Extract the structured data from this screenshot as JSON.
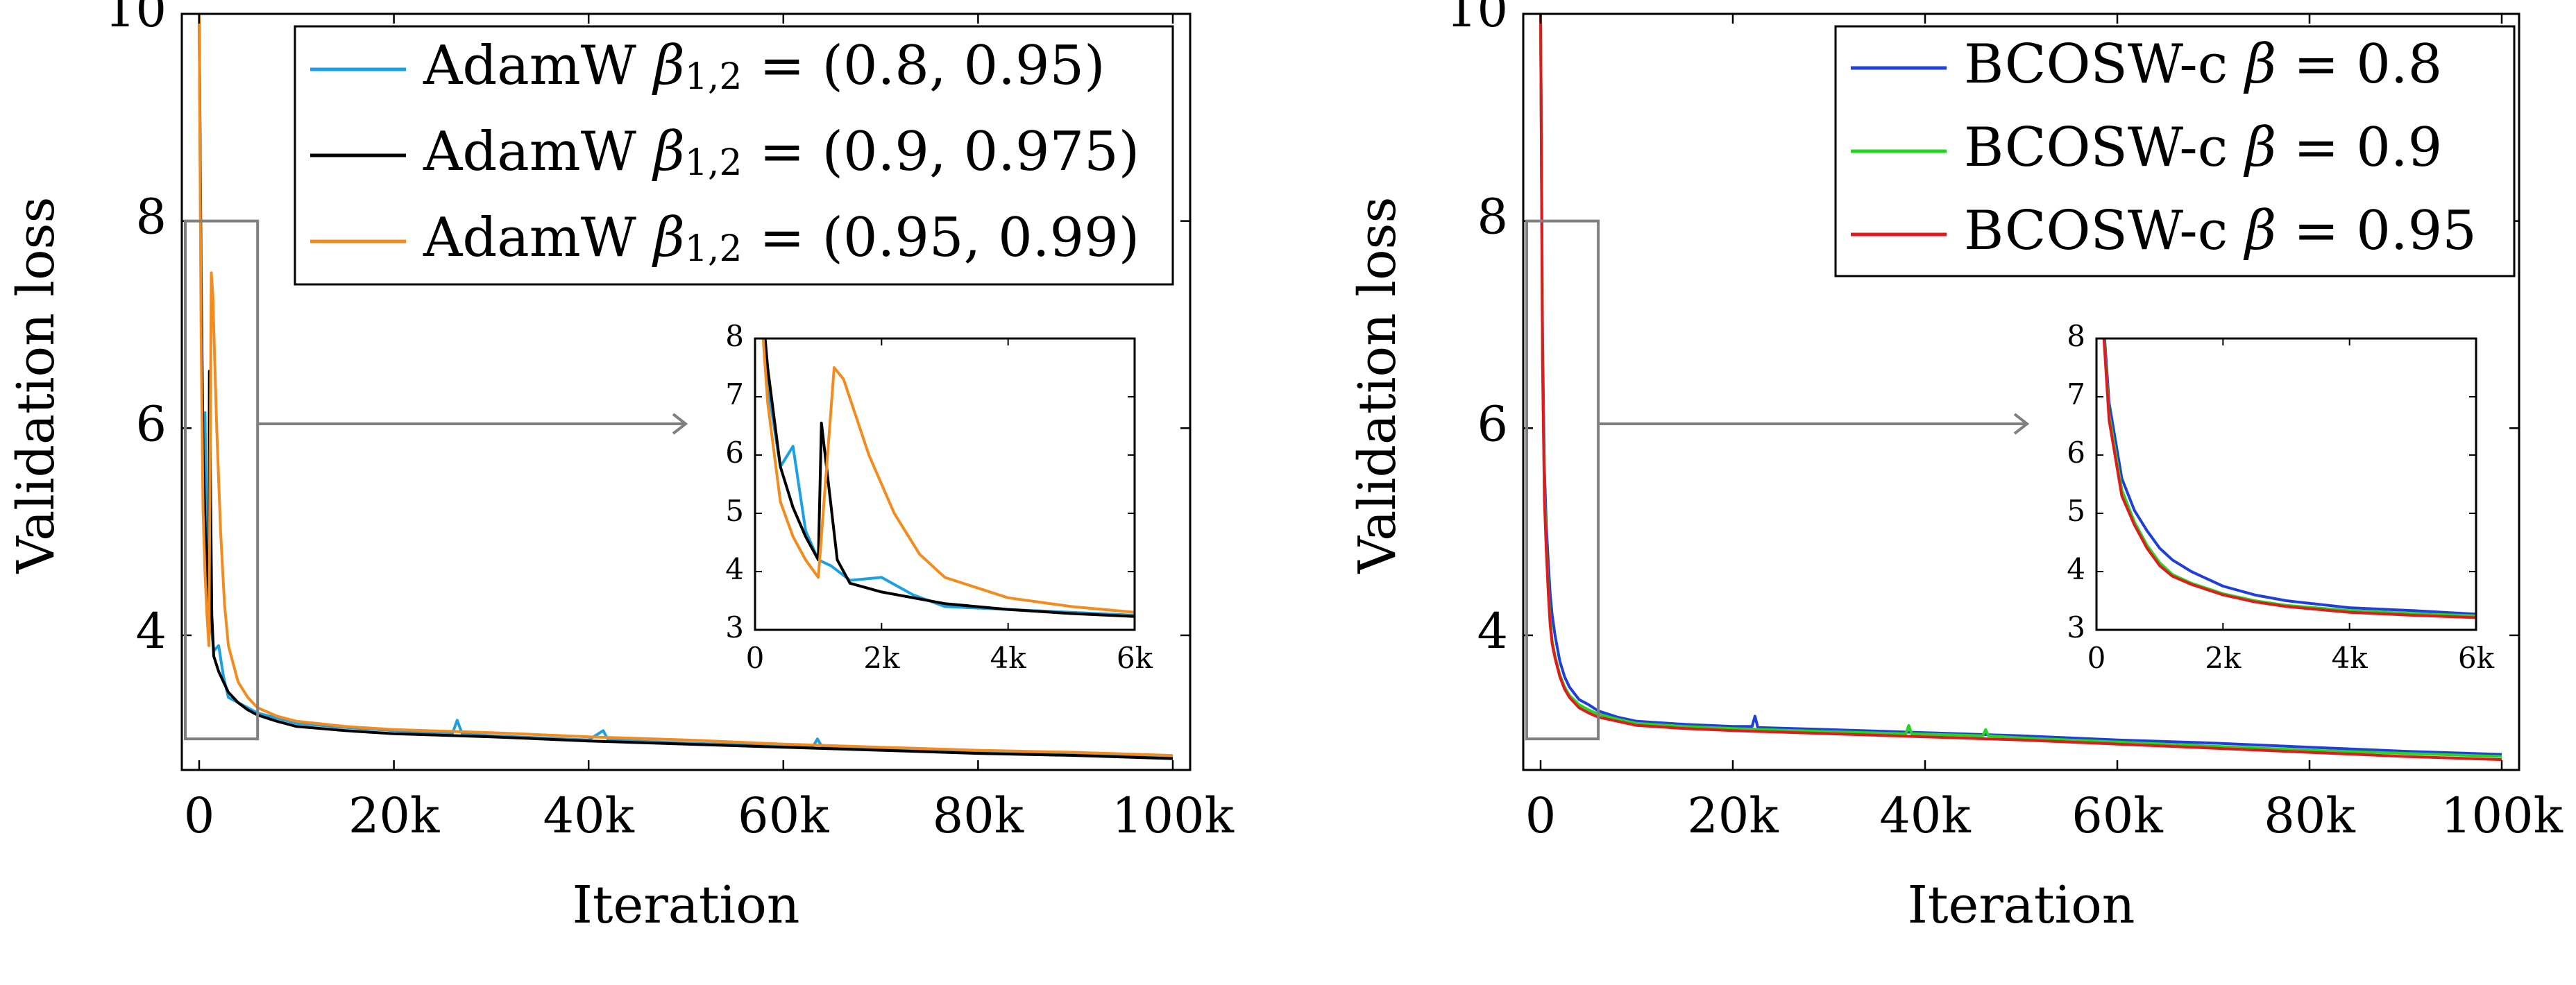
{
  "chart_data": [
    {
      "type": "line",
      "xlabel": "Iteration",
      "ylabel": "Validation loss",
      "xlim": [
        0,
        100000
      ],
      "ylim": [
        2.7,
        10
      ],
      "x_ticks": [
        {
          "value": 0,
          "label": "0"
        },
        {
          "value": 20000,
          "label": "20k"
        },
        {
          "value": 40000,
          "label": "40k"
        },
        {
          "value": 60000,
          "label": "60k"
        },
        {
          "value": 80000,
          "label": "80k"
        },
        {
          "value": 100000,
          "label": "100k"
        }
      ],
      "y_ticks": [
        {
          "value": 4,
          "label": "4"
        },
        {
          "value": 6,
          "label": "6"
        },
        {
          "value": 8,
          "label": "8"
        },
        {
          "value": 10,
          "label": "10"
        }
      ],
      "grid": false,
      "legend_position": "top-right",
      "legend": [
        {
          "label": "AdamW β1,2 = (0.8, 0.95)",
          "base": "AdamW ",
          "sym": "β",
          "sub": "1,2",
          "rest": " = (0.8, 0.95)",
          "color": "#1BA1E2"
        },
        {
          "label": "AdamW β1,2 = (0.9, 0.975)",
          "base": "AdamW ",
          "sym": "β",
          "sub": "1,2",
          "rest": " = (0.9, 0.975)",
          "color": "#000000"
        },
        {
          "label": "AdamW β1,2 = (0.95, 0.99)",
          "base": "AdamW ",
          "sym": "β",
          "sub": "1,2",
          "rest": " = (0.95, 0.99)",
          "color": "#F28C1E"
        }
      ],
      "series": [
        {
          "name": "AdamW β1,2 = (0.8, 0.95)",
          "color": "#1BA1E2",
          "x": [
            0,
            200,
            400,
            600,
            800,
            1000,
            1200,
            1500,
            2000,
            2500,
            3000,
            4000,
            5000,
            6000,
            8000,
            10000,
            15000,
            20000,
            26000,
            26500,
            27000,
            30000,
            40000,
            41500,
            42000,
            50000,
            60000,
            63000,
            63500,
            64000,
            70000,
            80000,
            90000,
            100000
          ],
          "y": [
            10,
            7.2,
            5.8,
            6.15,
            4.7,
            4.2,
            4.1,
            3.85,
            3.9,
            3.6,
            3.4,
            3.35,
            3.3,
            3.25,
            3.2,
            3.15,
            3.11,
            3.08,
            3.05,
            3.18,
            3.05,
            3.03,
            2.99,
            3.08,
            2.99,
            2.96,
            2.93,
            2.92,
            3.0,
            2.92,
            2.9,
            2.87,
            2.85,
            2.82
          ]
        },
        {
          "name": "AdamW β1,2 = (0.9, 0.975)",
          "color": "#000000",
          "x": [
            0,
            200,
            400,
            600,
            800,
            1000,
            1050,
            1300,
            1500,
            2000,
            3000,
            4000,
            5000,
            6000,
            8000,
            10000,
            15000,
            20000,
            30000,
            40000,
            50000,
            60000,
            70000,
            80000,
            90000,
            100000
          ],
          "y": [
            10,
            7.5,
            5.8,
            5.1,
            4.6,
            4.2,
            6.55,
            4.2,
            3.8,
            3.65,
            3.45,
            3.35,
            3.28,
            3.23,
            3.17,
            3.12,
            3.08,
            3.05,
            3.02,
            2.98,
            2.95,
            2.92,
            2.89,
            2.86,
            2.84,
            2.81
          ]
        },
        {
          "name": "AdamW β1,2 = (0.95, 0.99)",
          "color": "#F28C1E",
          "x": [
            0,
            200,
            400,
            600,
            800,
            1000,
            1250,
            1400,
            1800,
            2200,
            2600,
            3000,
            4000,
            5000,
            6000,
            8000,
            10000,
            15000,
            20000,
            30000,
            40000,
            50000,
            60000,
            70000,
            80000,
            90000,
            100000
          ],
          "y": [
            10,
            6.9,
            5.2,
            4.6,
            4.2,
            3.9,
            7.5,
            7.3,
            6.0,
            5.0,
            4.3,
            3.9,
            3.55,
            3.4,
            3.3,
            3.22,
            3.17,
            3.12,
            3.09,
            3.06,
            3.02,
            2.99,
            2.95,
            2.92,
            2.89,
            2.87,
            2.84
          ]
        }
      ],
      "zoom_box": {
        "xlim": [
          0,
          6000
        ],
        "ylim": [
          3,
          8
        ]
      },
      "inset": {
        "xlim": [
          0,
          6000
        ],
        "ylim": [
          3,
          8
        ],
        "x_ticks": [
          {
            "value": 0,
            "label": "0"
          },
          {
            "value": 2000,
            "label": "2k"
          },
          {
            "value": 4000,
            "label": "4k"
          },
          {
            "value": 6000,
            "label": "6k"
          }
        ],
        "y_ticks": [
          {
            "value": 3,
            "label": "3"
          },
          {
            "value": 4,
            "label": "4"
          },
          {
            "value": 5,
            "label": "5"
          },
          {
            "value": 6,
            "label": "6"
          },
          {
            "value": 7,
            "label": "7"
          },
          {
            "value": 8,
            "label": "8"
          }
        ]
      }
    },
    {
      "type": "line",
      "xlabel": "Iteration",
      "ylabel": "Validation loss",
      "xlim": [
        0,
        100000
      ],
      "ylim": [
        2.7,
        10
      ],
      "x_ticks": [
        {
          "value": 0,
          "label": "0"
        },
        {
          "value": 20000,
          "label": "20k"
        },
        {
          "value": 40000,
          "label": "40k"
        },
        {
          "value": 60000,
          "label": "60k"
        },
        {
          "value": 80000,
          "label": "80k"
        },
        {
          "value": 100000,
          "label": "100k"
        }
      ],
      "y_ticks": [
        {
          "value": 4,
          "label": "4"
        },
        {
          "value": 6,
          "label": "6"
        },
        {
          "value": 8,
          "label": "8"
        },
        {
          "value": 10,
          "label": "10"
        }
      ],
      "grid": false,
      "legend_position": "top-right",
      "legend": [
        {
          "label": "BCOSW-c β = 0.8",
          "base": "BCOSW-c ",
          "sym": "β",
          "sub": "",
          "rest": " = 0.8",
          "color": "#1F3FD8"
        },
        {
          "label": "BCOSW-c β = 0.9",
          "base": "BCOSW-c ",
          "sym": "β",
          "sub": "",
          "rest": " = 0.9",
          "color": "#22D622"
        },
        {
          "label": "BCOSW-c β = 0.95",
          "base": "BCOSW-c ",
          "sym": "β",
          "sub": "",
          "rest": " = 0.95",
          "color": "#E01B1B"
        }
      ],
      "series": [
        {
          "name": "BCOSW-c β = 0.8",
          "color": "#1F3FD8",
          "x": [
            0,
            200,
            400,
            600,
            800,
            1000,
            1200,
            1500,
            2000,
            2500,
            3000,
            4000,
            5000,
            6000,
            8000,
            10000,
            15000,
            20000,
            22000,
            22300,
            22600,
            30000,
            40000,
            50000,
            60000,
            70000,
            80000,
            90000,
            100000
          ],
          "y": [
            10,
            6.9,
            5.6,
            5.05,
            4.7,
            4.4,
            4.2,
            4.0,
            3.75,
            3.6,
            3.5,
            3.38,
            3.33,
            3.27,
            3.21,
            3.17,
            3.14,
            3.12,
            3.12,
            3.22,
            3.11,
            3.09,
            3.06,
            3.03,
            2.99,
            2.96,
            2.92,
            2.88,
            2.85
          ]
        },
        {
          "name": "BCOSW-c β = 0.9",
          "color": "#22D622",
          "x": [
            0,
            200,
            400,
            600,
            800,
            1000,
            1200,
            1500,
            2000,
            2500,
            3000,
            4000,
            5000,
            6000,
            8000,
            10000,
            15000,
            20000,
            30000,
            38000,
            38300,
            38600,
            46000,
            46300,
            46600,
            50000,
            60000,
            70000,
            80000,
            90000,
            100000
          ],
          "y": [
            10,
            6.7,
            5.4,
            4.85,
            4.45,
            4.15,
            3.95,
            3.8,
            3.62,
            3.5,
            3.42,
            3.33,
            3.28,
            3.24,
            3.19,
            3.15,
            3.12,
            3.1,
            3.07,
            3.05,
            3.13,
            3.05,
            3.03,
            3.09,
            3.03,
            3.01,
            2.97,
            2.93,
            2.89,
            2.86,
            2.83
          ]
        },
        {
          "name": "BCOSW-c β = 0.95",
          "color": "#E01B1B",
          "x": [
            0,
            200,
            400,
            600,
            800,
            1000,
            1200,
            1500,
            2000,
            2500,
            3000,
            4000,
            5000,
            6000,
            8000,
            10000,
            15000,
            20000,
            30000,
            40000,
            50000,
            60000,
            70000,
            80000,
            90000,
            100000
          ],
          "y": [
            10,
            6.6,
            5.3,
            4.8,
            4.4,
            4.1,
            3.92,
            3.78,
            3.6,
            3.48,
            3.4,
            3.3,
            3.25,
            3.21,
            3.17,
            3.13,
            3.1,
            3.08,
            3.05,
            3.02,
            2.99,
            2.95,
            2.91,
            2.87,
            2.83,
            2.8
          ]
        }
      ],
      "zoom_box": {
        "xlim": [
          0,
          6000
        ],
        "ylim": [
          3,
          8
        ]
      },
      "inset": {
        "xlim": [
          0,
          6000
        ],
        "ylim": [
          3,
          8
        ],
        "x_ticks": [
          {
            "value": 0,
            "label": "0"
          },
          {
            "value": 2000,
            "label": "2k"
          },
          {
            "value": 4000,
            "label": "4k"
          },
          {
            "value": 6000,
            "label": "6k"
          }
        ],
        "y_ticks": [
          {
            "value": 3,
            "label": "3"
          },
          {
            "value": 4,
            "label": "4"
          },
          {
            "value": 5,
            "label": "5"
          },
          {
            "value": 6,
            "label": "6"
          },
          {
            "value": 7,
            "label": "7"
          },
          {
            "value": 8,
            "label": "8"
          }
        ]
      }
    }
  ]
}
